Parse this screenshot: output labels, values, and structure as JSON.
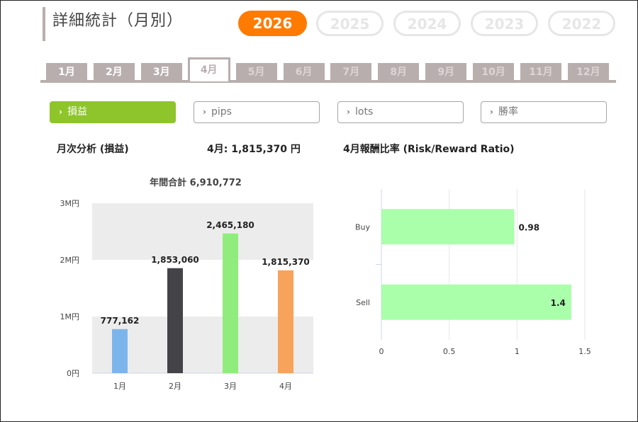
{
  "page": {
    "title": "詳細統計（月別）"
  },
  "years": [
    {
      "label": "2026",
      "active": true
    },
    {
      "label": "2025",
      "active": false
    },
    {
      "label": "2024",
      "active": false
    },
    {
      "label": "2023",
      "active": false
    },
    {
      "label": "2022",
      "active": false
    }
  ],
  "months": [
    {
      "label": "1月",
      "state": "normal"
    },
    {
      "label": "2月",
      "state": "normal"
    },
    {
      "label": "3月",
      "state": "normal"
    },
    {
      "label": "4月",
      "state": "active"
    },
    {
      "label": "5月",
      "state": "disabled"
    },
    {
      "label": "6月",
      "state": "disabled"
    },
    {
      "label": "7月",
      "state": "disabled"
    },
    {
      "label": "8月",
      "state": "disabled"
    },
    {
      "label": "9月",
      "state": "disabled"
    },
    {
      "label": "10月",
      "state": "disabled"
    },
    {
      "label": "11月",
      "state": "disabled"
    },
    {
      "label": "12月",
      "state": "disabled"
    }
  ],
  "metrics": [
    {
      "label": "損益",
      "active": true
    },
    {
      "label": "pips",
      "active": false
    },
    {
      "label": "lots",
      "active": false
    },
    {
      "label": "勝率",
      "active": false
    }
  ],
  "sections": {
    "monthly_analysis": "月次分析 (損益)",
    "month_total": "4月:  1,815,370 円",
    "rr_title": "4月報酬比率 (Risk/Reward Ratio)"
  },
  "colors": {
    "accent_orange": "#ff7a00",
    "tab_gray": "#b9aeae",
    "metric_active": "#8ec52a",
    "rr_bar": "#aaffaa"
  },
  "chart_data": [
    {
      "type": "bar",
      "title": "年間合計 6,910,772",
      "categories": [
        "1月",
        "2月",
        "3月",
        "4月"
      ],
      "values": [
        777162,
        1853060,
        2465180,
        1815370
      ],
      "data_labels": [
        "777,162",
        "1,853,060",
        "2,465,180",
        "1,815,370"
      ],
      "colors": [
        "#7cb5ec",
        "#434348",
        "#90ed7d",
        "#f7a35c"
      ],
      "y_ticks": [
        "0円",
        "1M円",
        "2M円",
        "3M円"
      ],
      "ylim": [
        0,
        3000000
      ],
      "xlabel": "",
      "ylabel": ""
    },
    {
      "type": "bar",
      "orientation": "horizontal",
      "categories": [
        "Buy",
        "Sell"
      ],
      "values": [
        0.98,
        1.4
      ],
      "data_labels": [
        "0.98",
        "1.4"
      ],
      "x_ticks": [
        "0",
        "0.5",
        "1",
        "1.5"
      ],
      "xlim": [
        0,
        1.5
      ],
      "xlabel": "",
      "ylabel": ""
    }
  ]
}
